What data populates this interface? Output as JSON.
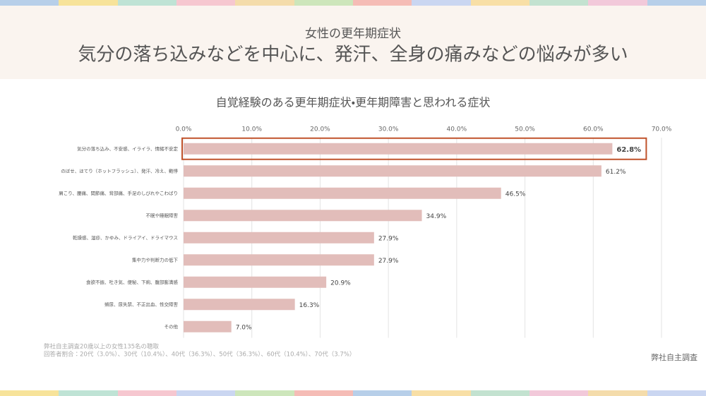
{
  "header": {
    "subtitle": "女性の更年期症状",
    "title": "気分の落ち込みなどを中心に、発汗、全身の痛みなどの悩みが多い"
  },
  "chart_data": {
    "type": "bar",
    "orientation": "horizontal",
    "title": "自覚経験のある更年期症状・更年期障害と思われる症状",
    "categories": [
      "気分の落ち込み、不安感、イライラ、情緒不安定",
      "のぼせ、ほてり（ホットフラッシュ）、発汗、冷え、動悸",
      "肩こり、腰痛、関節痛、背部痛、手足のしびれやこわばり",
      "不眠や睡眠障害",
      "乾燥感、湿疹、かゆみ、ドライアイ、ドライマウス",
      "集中力や判断力の低下",
      "食欲不振、吐き気、便秘、下痢、腹部膨満感",
      "頻尿、尿失禁、不正出血、性交障害",
      "その他"
    ],
    "values": [
      62.8,
      61.2,
      46.5,
      34.9,
      27.9,
      27.9,
      20.9,
      16.3,
      7.0
    ],
    "value_labels": [
      "62.8%",
      "61.2%",
      "46.5%",
      "34.9%",
      "27.9%",
      "27.9%",
      "20.9%",
      "16.3%",
      "7.0%"
    ],
    "color": "#e2bdba",
    "highlight": 0,
    "highlight_color": "#c0522b",
    "xlim": [
      0,
      70
    ],
    "xticks": [
      {
        "value": 0,
        "label": "0.0%"
      },
      {
        "value": 10,
        "label": "10.0%"
      },
      {
        "value": 20,
        "label": "20.0%"
      },
      {
        "value": 30,
        "label": "30.0%"
      },
      {
        "value": 40,
        "label": "40.0%"
      },
      {
        "value": 50,
        "label": "50.0%"
      },
      {
        "value": 60,
        "label": "60.0%"
      },
      {
        "value": 70,
        "label": "70.0%"
      }
    ],
    "grid": true
  },
  "notes": [
    "弊社自主調査20歳以上の女性135名の聴取",
    "回答者割合：20代（3.0%）、30代（10.4%）、40代（36.3%）、50代（36.3%）、60代（10.4%）、70代（3.7%）"
  ],
  "source": "弊社自主調査"
}
